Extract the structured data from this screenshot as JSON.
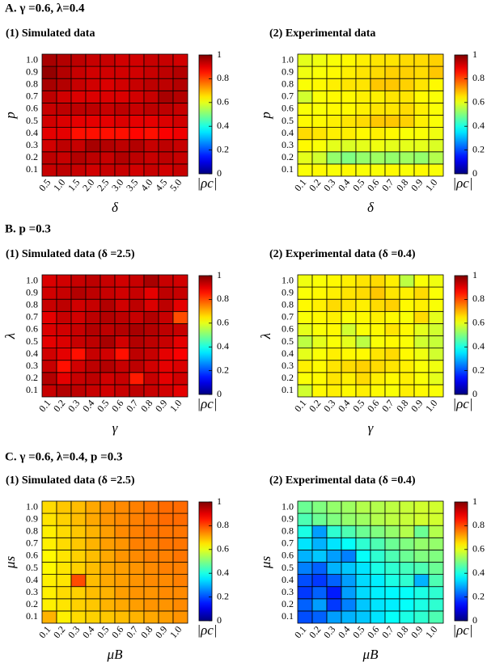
{
  "sections": [
    {
      "title": "A. γ =0.6, λ=0.4"
    },
    {
      "title": "B.  p =0.3"
    },
    {
      "title": "C. γ =0.6, λ=0.4, p =0.3"
    }
  ],
  "chart_data": [
    {
      "type": "heatmap",
      "title": "(1) Simulated data",
      "xlabel": "δ",
      "ylabel": "p",
      "colorbar_label": "|ρc|",
      "colormap": "jet",
      "x": [
        "0.5",
        "1.0",
        "1.5",
        "2.0",
        "2.5",
        "3.0",
        "3.5",
        "4.0",
        "4.5",
        "5.0"
      ],
      "y": [
        "0.1",
        "0.2",
        "0.3",
        "0.4",
        "0.5",
        "0.6",
        "0.7",
        "0.8",
        "0.9",
        "1.0"
      ],
      "zlim": [
        0,
        1
      ],
      "zticks": [
        0,
        0.2,
        0.4,
        0.6,
        0.8,
        1
      ],
      "values": [
        [
          0.93,
          0.94,
          0.93,
          0.92,
          0.93,
          0.93,
          0.92,
          0.93,
          0.92,
          0.93
        ],
        [
          0.94,
          0.93,
          0.95,
          0.94,
          0.93,
          0.95,
          0.94,
          0.93,
          0.94,
          0.93
        ],
        [
          0.92,
          0.94,
          0.93,
          0.96,
          0.95,
          0.94,
          0.95,
          0.93,
          0.94,
          0.93
        ],
        [
          0.9,
          0.9,
          0.86,
          0.86,
          0.86,
          0.86,
          0.87,
          0.86,
          0.88,
          0.89
        ],
        [
          0.92,
          0.91,
          0.9,
          0.9,
          0.9,
          0.91,
          0.9,
          0.9,
          0.91,
          0.92
        ],
        [
          0.93,
          0.94,
          0.94,
          0.94,
          0.93,
          0.94,
          0.93,
          0.94,
          0.94,
          0.93
        ],
        [
          0.94,
          0.92,
          0.91,
          0.91,
          0.91,
          0.91,
          0.92,
          0.93,
          0.96,
          0.95
        ],
        [
          0.96,
          0.95,
          0.93,
          0.92,
          0.91,
          0.92,
          0.93,
          0.94,
          0.94,
          0.95
        ],
        [
          0.98,
          0.95,
          0.93,
          0.92,
          0.92,
          0.92,
          0.92,
          0.93,
          0.94,
          0.95
        ],
        [
          0.96,
          0.95,
          0.94,
          0.93,
          0.93,
          0.92,
          0.92,
          0.93,
          0.93,
          0.92
        ]
      ]
    },
    {
      "type": "heatmap",
      "title": "(2) Experimental data",
      "xlabel": "δ",
      "ylabel": "p",
      "colorbar_label": "|ρc|",
      "colormap": "jet",
      "x": [
        "0.1",
        "0.2",
        "0.3",
        "0.4",
        "0.5",
        "0.6",
        "0.7",
        "0.8",
        "0.9",
        "1.0"
      ],
      "y": [
        "0.1",
        "0.2",
        "0.3",
        "0.4",
        "0.5",
        "0.6",
        "0.7",
        "0.8",
        "0.9",
        "1.0"
      ],
      "zlim": [
        0,
        1
      ],
      "zticks": [
        0,
        0.2,
        0.4,
        0.6,
        0.8,
        1
      ],
      "values": [
        [
          0.62,
          0.63,
          0.62,
          0.63,
          0.62,
          0.62,
          0.63,
          0.62,
          0.63,
          0.62
        ],
        [
          0.6,
          0.58,
          0.52,
          0.5,
          0.52,
          0.53,
          0.52,
          0.53,
          0.52,
          0.55
        ],
        [
          0.63,
          0.62,
          0.6,
          0.59,
          0.6,
          0.61,
          0.6,
          0.6,
          0.6,
          0.59
        ],
        [
          0.66,
          0.65,
          0.64,
          0.64,
          0.63,
          0.64,
          0.63,
          0.62,
          0.62,
          0.61
        ],
        [
          0.63,
          0.63,
          0.64,
          0.65,
          0.66,
          0.68,
          0.68,
          0.67,
          0.64,
          0.62
        ],
        [
          0.62,
          0.62,
          0.63,
          0.63,
          0.64,
          0.65,
          0.65,
          0.66,
          0.64,
          0.62
        ],
        [
          0.58,
          0.62,
          0.63,
          0.63,
          0.64,
          0.64,
          0.65,
          0.65,
          0.63,
          0.62
        ],
        [
          0.62,
          0.63,
          0.64,
          0.65,
          0.65,
          0.68,
          0.68,
          0.67,
          0.65,
          0.63
        ],
        [
          0.61,
          0.62,
          0.63,
          0.64,
          0.65,
          0.66,
          0.67,
          0.67,
          0.66,
          0.68
        ],
        [
          0.6,
          0.61,
          0.62,
          0.63,
          0.64,
          0.65,
          0.65,
          0.66,
          0.66,
          0.67
        ]
      ]
    },
    {
      "type": "heatmap",
      "title": "(1) Simulated data (δ =2.5)",
      "xlabel": "γ",
      "ylabel": "λ",
      "colorbar_label": "|ρc|",
      "colormap": "jet",
      "x": [
        "0.1",
        "0.2",
        "0.3",
        "0.4",
        "0.5",
        "0.6",
        "0.7",
        "0.8",
        "0.9",
        "1.0"
      ],
      "y": [
        "0.1",
        "0.2",
        "0.3",
        "0.4",
        "0.5",
        "0.6",
        "0.7",
        "0.8",
        "0.9",
        "1.0"
      ],
      "zlim": [
        0,
        1
      ],
      "zticks": [
        0,
        0.2,
        0.4,
        0.6,
        0.8,
        1
      ],
      "values": [
        [
          0.93,
          0.95,
          0.94,
          0.93,
          0.92,
          0.93,
          0.94,
          0.93,
          0.92,
          0.9
        ],
        [
          0.95,
          0.9,
          0.93,
          0.94,
          0.92,
          0.93,
          0.85,
          0.93,
          0.9,
          0.92
        ],
        [
          0.93,
          0.86,
          0.92,
          0.94,
          0.95,
          0.93,
          0.94,
          0.92,
          0.9,
          0.91
        ],
        [
          0.92,
          0.9,
          0.86,
          0.93,
          0.92,
          0.86,
          0.94,
          0.93,
          0.9,
          0.88
        ],
        [
          0.9,
          0.91,
          0.93,
          0.94,
          0.96,
          0.92,
          0.95,
          0.94,
          0.93,
          0.9
        ],
        [
          0.91,
          0.92,
          0.93,
          0.95,
          0.94,
          0.95,
          0.96,
          0.95,
          0.94,
          0.93
        ],
        [
          0.9,
          0.93,
          0.92,
          0.94,
          0.95,
          0.94,
          0.93,
          0.95,
          0.93,
          0.8
        ],
        [
          0.93,
          0.94,
          0.92,
          0.93,
          0.95,
          0.92,
          0.94,
          0.91,
          0.94,
          0.9
        ],
        [
          0.92,
          0.93,
          0.95,
          0.94,
          0.93,
          0.92,
          0.93,
          0.9,
          0.94,
          0.93
        ],
        [
          0.91,
          0.92,
          0.93,
          0.94,
          0.93,
          0.92,
          0.93,
          0.96,
          0.93,
          0.92
        ]
      ]
    },
    {
      "type": "heatmap",
      "title": "(2) Experimental data (δ =0.4)",
      "xlabel": "γ",
      "ylabel": "λ",
      "colorbar_label": "|ρc|",
      "colormap": "jet",
      "x": [
        "0.1",
        "0.2",
        "0.3",
        "0.4",
        "0.5",
        "0.6",
        "0.7",
        "0.8",
        "0.9",
        "1.0"
      ],
      "y": [
        "0.1",
        "0.2",
        "0.3",
        "0.4",
        "0.5",
        "0.6",
        "0.7",
        "0.8",
        "0.9",
        "1.0"
      ],
      "zlim": [
        0,
        1
      ],
      "zticks": [
        0,
        0.2,
        0.4,
        0.6,
        0.8,
        1
      ],
      "values": [
        [
          0.58,
          0.63,
          0.64,
          0.63,
          0.64,
          0.63,
          0.62,
          0.64,
          0.63,
          0.62
        ],
        [
          0.62,
          0.63,
          0.65,
          0.64,
          0.66,
          0.64,
          0.63,
          0.64,
          0.62,
          0.6
        ],
        [
          0.64,
          0.63,
          0.65,
          0.66,
          0.67,
          0.66,
          0.65,
          0.64,
          0.62,
          0.61
        ],
        [
          0.6,
          0.62,
          0.64,
          0.63,
          0.63,
          0.65,
          0.66,
          0.63,
          0.61,
          0.58
        ],
        [
          0.56,
          0.6,
          0.62,
          0.6,
          0.56,
          0.62,
          0.63,
          0.62,
          0.58,
          0.57
        ],
        [
          0.6,
          0.62,
          0.63,
          0.58,
          0.62,
          0.63,
          0.65,
          0.63,
          0.6,
          0.58
        ],
        [
          0.62,
          0.63,
          0.64,
          0.62,
          0.63,
          0.64,
          0.63,
          0.62,
          0.66,
          0.6
        ],
        [
          0.63,
          0.64,
          0.66,
          0.65,
          0.64,
          0.66,
          0.67,
          0.63,
          0.64,
          0.62
        ],
        [
          0.62,
          0.63,
          0.64,
          0.65,
          0.66,
          0.68,
          0.65,
          0.64,
          0.66,
          0.62
        ],
        [
          0.61,
          0.62,
          0.63,
          0.64,
          0.65,
          0.66,
          0.64,
          0.56,
          0.62,
          0.61
        ]
      ]
    },
    {
      "type": "heatmap",
      "title": "(1) Simulated data (δ =2.5)",
      "xlabel": "μB",
      "ylabel": "μs",
      "colorbar_label": "|ρc|",
      "colormap": "jet",
      "x": [
        "0.1",
        "0.2",
        "0.3",
        "0.4",
        "0.5",
        "0.6",
        "0.7",
        "0.8",
        "0.9",
        "1.0"
      ],
      "y": [
        "0.1",
        "0.2",
        "0.3",
        "0.4",
        "0.5",
        "0.6",
        "0.7",
        "0.8",
        "0.9",
        "1.0"
      ],
      "zlim": [
        0,
        1
      ],
      "zticks": [
        0,
        0.2,
        0.4,
        0.6,
        0.8,
        1
      ],
      "values": [
        [
          0.7,
          0.64,
          0.66,
          0.67,
          0.68,
          0.69,
          0.7,
          0.71,
          0.72,
          0.73
        ],
        [
          0.64,
          0.65,
          0.67,
          0.68,
          0.7,
          0.71,
          0.72,
          0.73,
          0.73,
          0.74
        ],
        [
          0.64,
          0.66,
          0.67,
          0.69,
          0.7,
          0.72,
          0.73,
          0.73,
          0.74,
          0.74
        ],
        [
          0.64,
          0.65,
          0.8,
          0.69,
          0.71,
          0.72,
          0.73,
          0.74,
          0.74,
          0.75
        ],
        [
          0.63,
          0.65,
          0.67,
          0.69,
          0.71,
          0.72,
          0.73,
          0.74,
          0.75,
          0.75
        ],
        [
          0.63,
          0.65,
          0.67,
          0.69,
          0.71,
          0.73,
          0.74,
          0.75,
          0.75,
          0.76
        ],
        [
          0.64,
          0.66,
          0.68,
          0.7,
          0.72,
          0.73,
          0.75,
          0.75,
          0.76,
          0.76
        ],
        [
          0.64,
          0.66,
          0.68,
          0.7,
          0.72,
          0.74,
          0.75,
          0.76,
          0.76,
          0.76
        ],
        [
          0.65,
          0.67,
          0.69,
          0.71,
          0.73,
          0.74,
          0.75,
          0.76,
          0.77,
          0.77
        ],
        [
          0.66,
          0.68,
          0.69,
          0.71,
          0.73,
          0.74,
          0.75,
          0.76,
          0.77,
          0.77
        ]
      ]
    },
    {
      "type": "heatmap",
      "title": "(2) Experimental data (δ =0.4)",
      "xlabel": "μB",
      "ylabel": "μs",
      "colorbar_label": "|ρc|",
      "colormap": "jet",
      "x": [
        "0.1",
        "0.2",
        "0.3",
        "0.4",
        "0.5",
        "0.6",
        "0.7",
        "0.8",
        "0.9",
        "1.0"
      ],
      "y": [
        "0.1",
        "0.2",
        "0.3",
        "0.4",
        "0.5",
        "0.6",
        "0.7",
        "0.8",
        "0.9",
        "1.0"
      ],
      "zlim": [
        0,
        1
      ],
      "zticks": [
        0,
        0.2,
        0.4,
        0.6,
        0.8,
        1
      ],
      "values": [
        [
          0.2,
          0.22,
          0.28,
          0.3,
          0.32,
          0.35,
          0.38,
          0.4,
          0.42,
          0.45
        ],
        [
          0.22,
          0.28,
          0.18,
          0.25,
          0.32,
          0.35,
          0.36,
          0.38,
          0.4,
          0.42
        ],
        [
          0.18,
          0.22,
          0.15,
          0.28,
          0.34,
          0.36,
          0.37,
          0.38,
          0.4,
          0.42
        ],
        [
          0.2,
          0.18,
          0.22,
          0.28,
          0.34,
          0.36,
          0.4,
          0.42,
          0.3,
          0.45
        ],
        [
          0.25,
          0.22,
          0.3,
          0.32,
          0.35,
          0.4,
          0.42,
          0.44,
          0.45,
          0.48
        ],
        [
          0.3,
          0.32,
          0.28,
          0.25,
          0.38,
          0.42,
          0.45,
          0.48,
          0.5,
          0.5
        ],
        [
          0.35,
          0.3,
          0.35,
          0.38,
          0.42,
          0.45,
          0.48,
          0.5,
          0.52,
          0.52
        ],
        [
          0.4,
          0.28,
          0.42,
          0.45,
          0.48,
          0.5,
          0.52,
          0.55,
          0.48,
          0.55
        ],
        [
          0.45,
          0.48,
          0.5,
          0.52,
          0.53,
          0.55,
          0.56,
          0.57,
          0.58,
          0.58
        ],
        [
          0.48,
          0.5,
          0.52,
          0.53,
          0.55,
          0.55,
          0.56,
          0.57,
          0.58,
          0.58
        ]
      ]
    }
  ]
}
